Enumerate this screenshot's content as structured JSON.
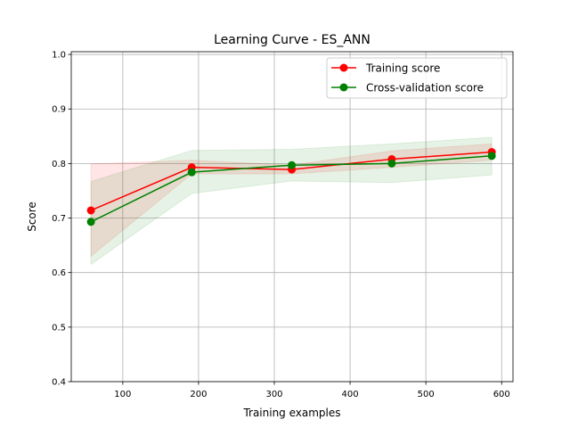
{
  "chart_data": {
    "type": "line",
    "title": "Learning Curve - ES_ANN",
    "xlabel": "Training examples",
    "ylabel": "Score",
    "xlim": [
      32,
      615
    ],
    "ylim": [
      0.4,
      1.005
    ],
    "xticks": [
      100,
      200,
      300,
      400,
      500,
      600
    ],
    "yticks": [
      0.4,
      0.5,
      0.6,
      0.7,
      0.8,
      0.9,
      1.0
    ],
    "grid": true,
    "legend_position": "upper-right",
    "x": [
      58,
      191,
      323,
      455,
      587
    ],
    "series": [
      {
        "name": "Training score",
        "color": "#ff0000",
        "marker": "circle",
        "values": [
          0.714,
          0.793,
          0.789,
          0.808,
          0.821
        ],
        "band_lower": [
          0.63,
          0.781,
          0.781,
          0.793,
          0.806
        ],
        "band_upper": [
          0.799,
          0.806,
          0.797,
          0.823,
          0.836
        ]
      },
      {
        "name": "Cross-validation score",
        "color": "#008000",
        "marker": "circle",
        "values": [
          0.693,
          0.784,
          0.797,
          0.8,
          0.814
        ],
        "band_lower": [
          0.615,
          0.745,
          0.768,
          0.765,
          0.779
        ],
        "band_upper": [
          0.767,
          0.824,
          0.826,
          0.836,
          0.848
        ]
      }
    ]
  }
}
